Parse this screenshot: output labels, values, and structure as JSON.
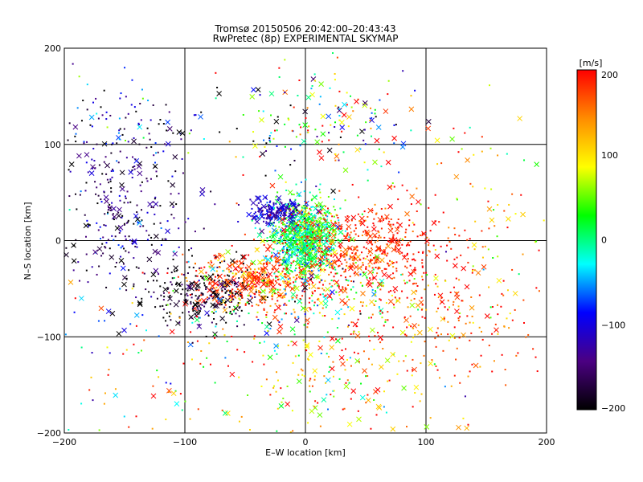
{
  "chart_data": {
    "type": "scatter",
    "title": "Tromsø 20150506 20:42:00–20:43:43",
    "subtitle": "RwPretec (8p) EXPERIMENTAL SKYMAP",
    "xlabel": "E–W location [km]",
    "ylabel": "N–S location [km]",
    "xlim": [
      -200,
      200
    ],
    "ylim": [
      -200,
      200
    ],
    "x_ticks": [
      -200,
      -100,
      0,
      100,
      200
    ],
    "y_ticks": [
      -200,
      -100,
      0,
      100,
      200
    ],
    "grid": true,
    "colorbar": {
      "label": "[m/s]",
      "min": -200,
      "max": 200,
      "ticks": [
        200,
        100,
        0,
        -100,
        -200
      ],
      "colors": [
        "#000000",
        "#4b0082",
        "#0000ff",
        "#00ffff",
        "#00ff00",
        "#ffff00",
        "#ff8c00",
        "#ff0000"
      ]
    },
    "clusters": [
      {
        "cx": -155,
        "cy": 35,
        "sx": 30,
        "sy": 45,
        "n": 320,
        "v": -150,
        "sv": 50
      },
      {
        "cx": -140,
        "cy": 120,
        "sx": 40,
        "sy": 25,
        "n": 80,
        "v": -120,
        "sv": 90
      },
      {
        "cx": -2,
        "cy": 5,
        "sx": 14,
        "sy": 18,
        "n": 900,
        "v": 10,
        "sv": 40
      },
      {
        "cx": -25,
        "cy": 30,
        "sx": 10,
        "sy": 6,
        "n": 180,
        "v": -110,
        "sv": 20
      },
      {
        "cx": 45,
        "cy": -5,
        "sx": 35,
        "sy": 22,
        "n": 450,
        "v": 185,
        "sv": 20
      },
      {
        "cx": -45,
        "cy": -42,
        "sx": 25,
        "sy": 14,
        "n": 380,
        "v": 170,
        "sv": 40
      },
      {
        "cx": -85,
        "cy": -55,
        "sx": 25,
        "sy": 18,
        "n": 250,
        "v": -190,
        "sv": 30
      },
      {
        "cx": 5,
        "cy": -55,
        "sx": 45,
        "sy": 25,
        "n": 300,
        "v": 80,
        "sv": 120
      },
      {
        "cx": 100,
        "cy": -70,
        "sx": 55,
        "sy": 40,
        "n": 280,
        "v": 170,
        "sv": 50
      },
      {
        "cx": 30,
        "cy": -150,
        "sx": 55,
        "sy": 35,
        "n": 180,
        "v": 120,
        "sv": 90
      },
      {
        "cx": 10,
        "cy": 120,
        "sx": 40,
        "sy": 40,
        "n": 200,
        "v": 20,
        "sv": 140
      },
      {
        "cx": -130,
        "cy": -120,
        "sx": 55,
        "sy": 45,
        "n": 120,
        "v": 60,
        "sv": 120
      },
      {
        "cx": 140,
        "cy": 30,
        "sx": 45,
        "sy": 45,
        "n": 100,
        "v": 140,
        "sv": 80
      }
    ]
  }
}
